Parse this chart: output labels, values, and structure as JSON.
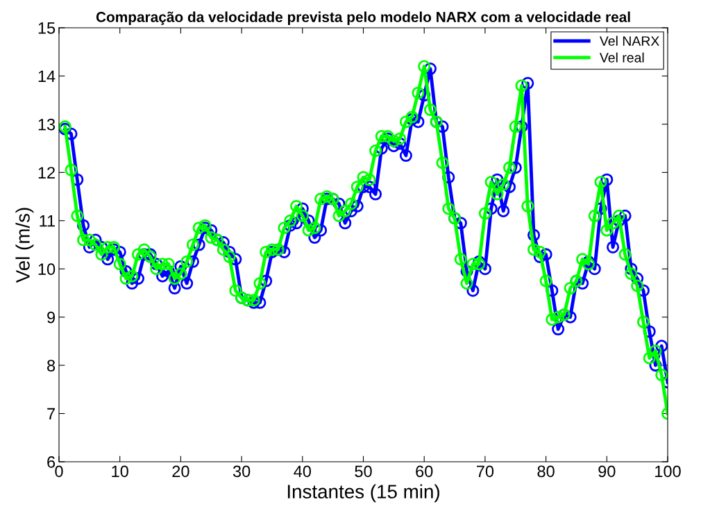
{
  "chart_data": {
    "type": "line",
    "title": "Comparação da velocidade prevista pelo modelo NARX com a velocidade real",
    "xlabel": "Instantes (15 min)",
    "ylabel": "Vel (m/s)",
    "x": [
      1,
      2,
      3,
      4,
      5,
      6,
      7,
      8,
      9,
      10,
      11,
      12,
      13,
      14,
      15,
      16,
      17,
      18,
      19,
      20,
      21,
      22,
      23,
      24,
      25,
      26,
      27,
      28,
      29,
      30,
      31,
      32,
      33,
      34,
      35,
      36,
      37,
      38,
      39,
      40,
      41,
      42,
      43,
      44,
      45,
      46,
      47,
      48,
      49,
      50,
      51,
      52,
      53,
      54,
      55,
      56,
      57,
      58,
      59,
      60,
      61,
      62,
      63,
      64,
      65,
      66,
      67,
      68,
      69,
      70,
      71,
      72,
      73,
      74,
      75,
      76,
      77,
      78,
      79,
      80,
      81,
      82,
      83,
      84,
      85,
      86,
      87,
      88,
      89,
      90,
      91,
      92,
      93,
      94,
      95,
      96,
      97,
      98,
      99,
      100
    ],
    "series": [
      {
        "name": "Vel NARX",
        "color": "#0000ff",
        "values": [
          12.9,
          12.8,
          11.85,
          10.9,
          10.45,
          10.6,
          10.45,
          10.2,
          10.4,
          10.35,
          9.95,
          9.7,
          9.8,
          10.3,
          10.3,
          10.1,
          9.85,
          9.95,
          9.6,
          10.05,
          9.7,
          10.15,
          10.5,
          10.85,
          10.8,
          10.6,
          10.55,
          10.35,
          10.2,
          9.4,
          9.35,
          9.3,
          9.3,
          9.75,
          10.35,
          10.4,
          10.35,
          10.9,
          10.95,
          11.25,
          11.0,
          10.65,
          10.8,
          11.45,
          11.45,
          11.35,
          10.95,
          11.2,
          11.3,
          11.7,
          11.7,
          11.55,
          12.5,
          12.7,
          12.55,
          12.6,
          12.35,
          13.1,
          13.05,
          13.6,
          14.15,
          13.05,
          12.95,
          11.9,
          11.05,
          10.95,
          9.95,
          9.55,
          10.15,
          10.0,
          11.25,
          11.85,
          11.2,
          11.7,
          12.1,
          12.95,
          13.85,
          10.7,
          10.25,
          10.3,
          9.55,
          8.75,
          9.05,
          9.0,
          9.75,
          9.7,
          10.15,
          10.0,
          11.25,
          11.85,
          10.45,
          11.0,
          11.1,
          10.0,
          9.8,
          9.55,
          8.7,
          8.0,
          8.4,
          7.65
        ]
      },
      {
        "name": "Vel real",
        "color": "#00ff00",
        "values": [
          12.95,
          12.05,
          11.1,
          10.6,
          10.6,
          10.5,
          10.3,
          10.45,
          10.45,
          10.1,
          9.8,
          9.85,
          10.3,
          10.4,
          10.25,
          10.0,
          10.1,
          10.1,
          9.8,
          9.9,
          10.15,
          10.5,
          10.85,
          10.9,
          10.65,
          10.6,
          10.4,
          10.25,
          9.55,
          9.4,
          9.35,
          9.35,
          9.7,
          10.35,
          10.4,
          10.4,
          10.85,
          11.0,
          11.3,
          11.1,
          10.8,
          10.85,
          11.45,
          11.5,
          11.45,
          11.1,
          11.2,
          11.35,
          11.7,
          11.9,
          11.85,
          12.45,
          12.75,
          12.75,
          12.65,
          12.7,
          13.05,
          13.15,
          13.65,
          14.2,
          13.3,
          13.05,
          12.2,
          11.25,
          11.05,
          10.2,
          9.7,
          10.1,
          10.1,
          11.15,
          11.8,
          11.55,
          11.75,
          12.1,
          12.95,
          13.8,
          11.3,
          10.4,
          10.35,
          9.75,
          8.95,
          9.0,
          9.05,
          9.6,
          9.75,
          10.2,
          10.1,
          11.1,
          11.8,
          10.8,
          10.95,
          11.1,
          10.3,
          9.9,
          9.65,
          8.9,
          8.15,
          8.3,
          7.8,
          7.0
        ]
      }
    ],
    "xlim": [
      0,
      100
    ],
    "xticks": [
      0,
      10,
      20,
      30,
      40,
      50,
      60,
      70,
      80,
      90,
      100
    ],
    "ylim": [
      6,
      15
    ],
    "yticks": [
      6,
      7,
      8,
      9,
      10,
      11,
      12,
      13,
      14,
      15
    ],
    "grid": false,
    "legend": "top right",
    "marker": "circle",
    "line_style": "solid"
  }
}
